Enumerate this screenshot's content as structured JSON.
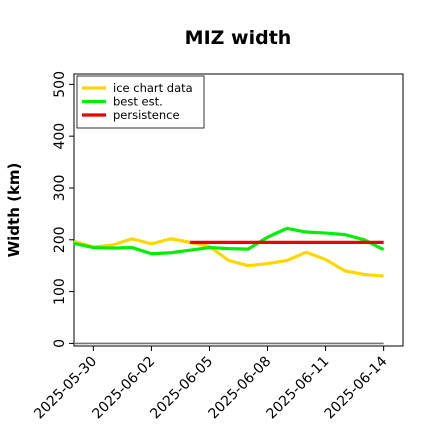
{
  "chart_data": {
    "type": "line",
    "title": "MIZ width",
    "xlabel": "",
    "ylabel": "Width (km)",
    "ylim": [
      -5,
      520
    ],
    "xlim": [
      "2025-05-29",
      "2025-06-15"
    ],
    "yticks": [
      0,
      100,
      200,
      300,
      400,
      500
    ],
    "xticks": [
      "2025-05-30",
      "2025-06-02",
      "2025-06-05",
      "2025-06-08",
      "2025-06-11",
      "2025-06-14"
    ],
    "grid": false,
    "legend_position": "top-left",
    "series": [
      {
        "name": "ice chart data",
        "color": "#ffd700",
        "x": [
          "2025-05-29",
          "2025-05-30",
          "2025-05-31",
          "2025-06-01",
          "2025-06-02",
          "2025-06-03",
          "2025-06-04",
          "2025-06-05",
          "2025-06-06",
          "2025-06-07",
          "2025-06-08",
          "2025-06-09",
          "2025-06-10",
          "2025-06-11",
          "2025-06-12",
          "2025-06-13",
          "2025-06-14"
        ],
        "y": [
          197,
          186,
          190,
          202,
          192,
          202,
          195,
          187,
          160,
          150,
          154,
          160,
          176,
          162,
          140,
          133,
          130
        ]
      },
      {
        "name": "best est.",
        "color": "#00ee00",
        "x": [
          "2025-05-29",
          "2025-05-30",
          "2025-05-31",
          "2025-06-01",
          "2025-06-02",
          "2025-06-03",
          "2025-06-04",
          "2025-06-05",
          "2025-06-06",
          "2025-06-07",
          "2025-06-08",
          "2025-06-09",
          "2025-06-10",
          "2025-06-11",
          "2025-06-12",
          "2025-06-13",
          "2025-06-14"
        ],
        "y": [
          193,
          185,
          184,
          185,
          173,
          175,
          180,
          185,
          183,
          182,
          205,
          222,
          215,
          213,
          210,
          200,
          181
        ]
      },
      {
        "name": "persistence",
        "color": "#ee0000",
        "x": [
          "2025-06-04",
          "2025-06-14"
        ],
        "y": [
          195,
          195
        ]
      }
    ],
    "reference_line": {
      "y": 0,
      "x": [
        "2025-05-29",
        "2025-06-14"
      ],
      "color": "#777777"
    }
  }
}
